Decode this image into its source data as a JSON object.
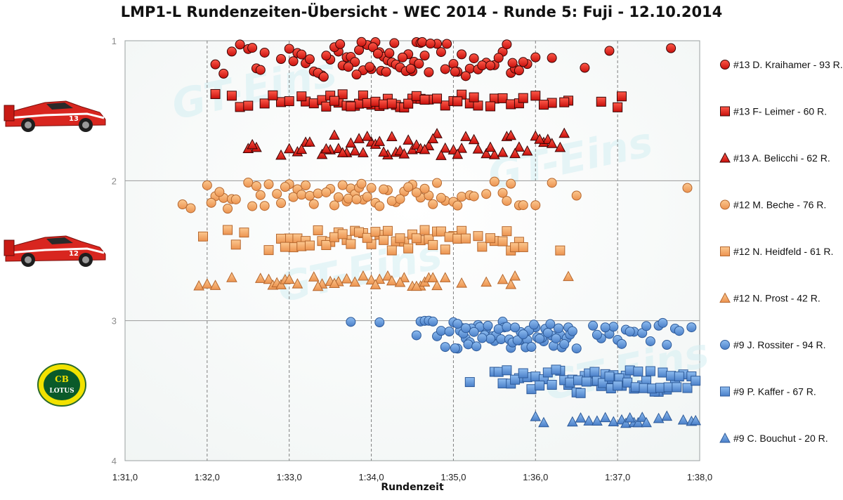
{
  "chart_data": {
    "type": "scatter",
    "title": "LMP1-L Rundenzeiten-Übersicht - WEC 2014 - Runde 5: Fuji - 12.10.2014",
    "xlabel": "Rundenzeit",
    "ylabel": "",
    "xlim": [
      91,
      98
    ],
    "ylim": [
      4,
      1
    ],
    "x_ticks": [
      "1:31,0",
      "1:32,0",
      "1:33,0",
      "1:34,0",
      "1:35,0",
      "1:36,0",
      "1:37,0",
      "1:38,0"
    ],
    "y_ticks": [
      "1",
      "2",
      "3",
      "4"
    ],
    "grid": "vertical dashed, horizontal solid",
    "legend_position": "right",
    "watermark": "GT-Eins",
    "series": [
      {
        "name": "#13 D. Kraihamer - 93 R.",
        "marker": "circle",
        "color": "#e31d1d",
        "band": [
          1.0,
          1.26
        ],
        "seed": 11,
        "x": [
          92.1,
          92.2,
          92.3,
          92.4,
          92.5,
          92.6,
          92.55,
          92.7,
          92.65,
          93.1,
          93.2,
          93.3,
          93.4,
          93.5,
          93.6,
          93.7,
          93.75,
          93.8,
          93.85,
          93.9,
          93.95,
          94.0,
          94.05,
          94.1,
          94.15,
          94.2,
          94.25,
          94.3,
          94.35,
          94.45,
          94.5,
          94.55,
          94.6,
          94.65,
          94.7,
          94.8,
          94.9,
          95.0,
          95.05,
          95.1,
          95.2,
          95.3,
          95.4,
          95.5,
          95.6,
          95.7,
          95.75,
          95.8,
          95.9,
          96.2,
          96.6,
          96.9,
          97.65,
          92.9,
          93.0,
          93.15,
          93.25,
          93.35,
          93.45,
          93.55,
          93.65,
          93.72,
          93.82,
          93.88,
          93.98,
          94.02,
          94.08,
          94.12,
          94.22,
          94.28,
          94.38,
          94.42,
          94.52,
          94.62,
          94.72,
          94.85,
          95.15,
          95.25,
          95.35,
          95.45,
          95.55,
          95.65,
          95.85,
          96.0,
          93.42,
          93.62,
          94.18,
          94.48,
          94.58,
          94.92,
          95.02,
          95.72,
          93.05
        ]
      },
      {
        "name": "#13 F- Leimer - 60 R.",
        "marker": "square",
        "color": "#e31d1d",
        "band": [
          1.38,
          1.48
        ],
        "seed": 23,
        "x": [
          92.3,
          92.4,
          92.5,
          92.7,
          92.9,
          93.0,
          93.2,
          93.3,
          93.4,
          93.5,
          93.6,
          93.65,
          93.7,
          93.8,
          93.85,
          93.9,
          94.0,
          94.1,
          94.2,
          94.3,
          94.35,
          94.4,
          94.5,
          94.6,
          94.7,
          94.9,
          95.0,
          95.1,
          95.2,
          95.3,
          95.5,
          95.6,
          95.7,
          95.8,
          96.0,
          96.2,
          96.4,
          96.8,
          97.0,
          97.05,
          92.1,
          92.8,
          93.15,
          93.45,
          93.55,
          93.75,
          93.95,
          94.05,
          94.15,
          94.25,
          94.45,
          94.55,
          94.65,
          94.8,
          95.05,
          95.25,
          95.45,
          95.85,
          96.35,
          96.1
        ]
      },
      {
        "name": "#13 A. Belicchi - 62 R.",
        "marker": "triangle",
        "color": "#e31d1d",
        "band": [
          1.66,
          1.82
        ],
        "seed": 37,
        "x": [
          92.5,
          92.6,
          92.9,
          93.0,
          93.1,
          93.2,
          93.4,
          93.5,
          93.6,
          93.7,
          93.8,
          93.85,
          93.9,
          94.0,
          94.05,
          94.1,
          94.2,
          94.3,
          94.35,
          94.4,
          94.5,
          94.55,
          94.6,
          94.7,
          94.8,
          94.9,
          95.0,
          95.1,
          95.25,
          95.3,
          95.4,
          95.5,
          95.6,
          95.65,
          95.7,
          95.8,
          95.9,
          96.0,
          96.1,
          96.15,
          96.2,
          96.3,
          96.35,
          92.55,
          93.15,
          93.25,
          93.45,
          93.55,
          93.65,
          93.75,
          93.95,
          94.15,
          94.25,
          94.45,
          94.65,
          94.75,
          94.85,
          95.05,
          95.15,
          95.45,
          95.75,
          96.05
        ]
      },
      {
        "name": "#12 M. Beche - 76 R.",
        "marker": "circle",
        "color": "#f0a060",
        "band": [
          2.0,
          2.2
        ],
        "seed": 41,
        "x": [
          91.7,
          91.8,
          92.0,
          92.1,
          92.2,
          92.3,
          92.5,
          92.6,
          92.7,
          92.9,
          93.0,
          93.1,
          93.2,
          93.3,
          93.5,
          93.6,
          93.7,
          93.75,
          93.8,
          93.85,
          93.9,
          94.0,
          94.05,
          94.1,
          94.2,
          94.3,
          94.4,
          94.5,
          94.6,
          94.7,
          94.8,
          94.9,
          95.0,
          95.1,
          95.2,
          95.4,
          95.5,
          95.6,
          95.7,
          95.8,
          96.0,
          96.2,
          96.5,
          97.85,
          92.05,
          92.15,
          92.25,
          92.35,
          92.55,
          92.65,
          92.75,
          92.85,
          92.95,
          93.05,
          93.15,
          93.25,
          93.35,
          93.45,
          93.55,
          93.65,
          93.72,
          93.82,
          93.88,
          93.95,
          94.15,
          94.25,
          94.35,
          94.45,
          94.55,
          94.65,
          94.75,
          94.85,
          95.05,
          95.25,
          95.65,
          95.85
        ]
      },
      {
        "name": "#12 N. Heidfeld - 61 R.",
        "marker": "square",
        "color": "#f0a060",
        "band": [
          2.35,
          2.5
        ],
        "seed": 53,
        "x": [
          91.95,
          92.25,
          92.35,
          92.45,
          92.75,
          93.0,
          93.1,
          93.2,
          93.4,
          93.5,
          93.6,
          93.7,
          93.8,
          93.9,
          94.0,
          94.1,
          94.2,
          94.3,
          94.4,
          94.5,
          94.6,
          94.7,
          94.8,
          94.9,
          95.0,
          95.1,
          95.3,
          95.5,
          95.6,
          95.7,
          95.8,
          96.3,
          92.9,
          93.05,
          93.15,
          93.35,
          93.45,
          93.55,
          93.65,
          93.75,
          93.85,
          93.95,
          94.05,
          94.15,
          94.25,
          94.35,
          94.45,
          94.55,
          94.65,
          94.75,
          94.85,
          94.95,
          95.05,
          95.15,
          95.35,
          95.45,
          95.75,
          95.85,
          95.65,
          93.25,
          92.95
        ]
      },
      {
        "name": "#12 N. Prost - 42 R.",
        "marker": "triangle",
        "color": "#f0a060",
        "band": [
          2.68,
          2.76
        ],
        "seed": 67,
        "x": [
          91.9,
          92.0,
          92.1,
          92.3,
          92.65,
          92.75,
          92.8,
          92.85,
          92.9,
          92.95,
          93.0,
          93.1,
          93.3,
          93.4,
          93.5,
          93.6,
          93.7,
          93.8,
          93.9,
          94.0,
          94.1,
          94.2,
          94.25,
          94.4,
          94.5,
          94.6,
          94.65,
          94.7,
          94.75,
          94.8,
          94.9,
          95.1,
          95.4,
          95.6,
          95.7,
          95.75,
          96.4,
          93.35,
          93.55,
          94.05,
          94.35,
          94.55
        ]
      },
      {
        "name": "#9 J. Rossiter - 94 R.",
        "marker": "circle",
        "color": "#5b8fd6",
        "band": [
          3.0,
          3.2
        ],
        "seed": 71,
        "x": [
          93.75,
          94.1,
          94.6,
          94.65,
          94.7,
          94.8,
          94.9,
          95.0,
          95.05,
          95.1,
          95.15,
          95.2,
          95.25,
          95.3,
          95.4,
          95.5,
          95.6,
          95.7,
          95.8,
          95.9,
          96.0,
          96.1,
          96.2,
          96.3,
          96.4,
          96.5,
          96.7,
          96.8,
          96.9,
          97.0,
          97.1,
          97.2,
          97.3,
          97.4,
          97.5,
          97.6,
          97.7,
          97.9,
          94.85,
          94.95,
          95.02,
          95.08,
          95.12,
          95.18,
          95.22,
          95.28,
          95.32,
          95.38,
          95.42,
          95.48,
          95.52,
          95.58,
          95.62,
          95.68,
          95.72,
          95.78,
          95.82,
          95.88,
          95.92,
          95.98,
          96.02,
          96.08,
          96.12,
          96.18,
          96.22,
          96.28,
          96.32,
          96.38,
          96.42,
          96.75,
          96.95,
          97.15,
          97.35,
          97.55,
          97.75,
          96.15,
          96.25,
          96.35,
          95.45,
          95.55,
          95.65,
          95.75,
          95.85,
          95.95,
          96.05,
          95.35,
          95.25,
          95.15,
          95.05,
          94.75,
          94.55,
          96.45,
          96.85,
          97.05
        ]
      },
      {
        "name": "#9 P. Kaffer - 67 R.",
        "marker": "square",
        "color": "#5b8fd6",
        "band": [
          3.35,
          3.52
        ],
        "seed": 83,
        "x": [
          95.2,
          95.5,
          95.6,
          95.7,
          95.8,
          95.9,
          96.0,
          96.1,
          96.2,
          96.3,
          96.4,
          96.5,
          96.6,
          96.7,
          96.8,
          96.9,
          97.0,
          97.1,
          97.2,
          97.3,
          97.4,
          97.5,
          97.6,
          97.7,
          97.8,
          97.9,
          95.55,
          95.65,
          95.75,
          95.85,
          95.95,
          96.05,
          96.15,
          96.25,
          96.35,
          96.45,
          96.55,
          96.65,
          96.75,
          96.85,
          96.95,
          97.05,
          97.15,
          97.25,
          97.35,
          97.45,
          97.55,
          97.65,
          97.75,
          97.85,
          97.95,
          96.42,
          96.52,
          96.62,
          96.72,
          96.82,
          96.92,
          97.02,
          97.12,
          97.22,
          97.32,
          97.42,
          97.52,
          97.62,
          97.72,
          96.9,
          97.0
        ]
      },
      {
        "name": "#9 C. Bouchut - 20 R.",
        "marker": "triangle",
        "color": "#5b8fd6",
        "band": [
          3.68,
          3.74
        ],
        "seed": 97,
        "x": [
          96.0,
          96.1,
          96.45,
          96.65,
          96.75,
          96.85,
          96.95,
          97.05,
          97.1,
          97.2,
          97.25,
          97.3,
          97.5,
          97.6,
          97.8,
          97.9,
          97.95,
          96.55,
          97.15,
          97.35
        ]
      }
    ]
  }
}
